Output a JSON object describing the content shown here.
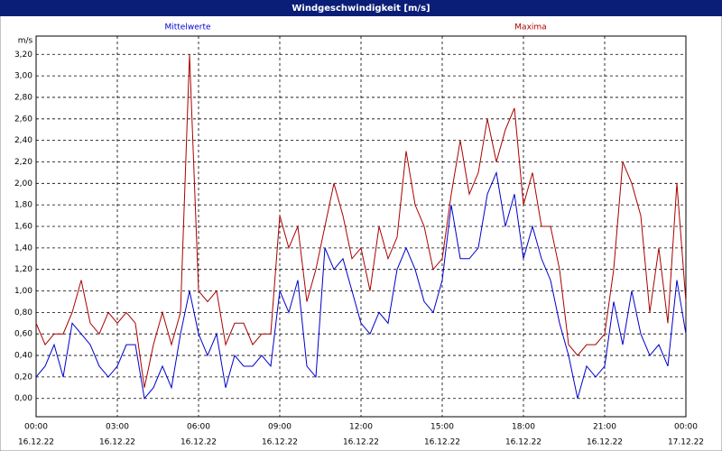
{
  "chart_data": {
    "type": "line",
    "title": "Windgeschwindigkeit [m/s]",
    "y_label": "m/s",
    "x": [
      0,
      20,
      40,
      60,
      80,
      100,
      120,
      140,
      160,
      180,
      200,
      220,
      240,
      260,
      280,
      300,
      320,
      340,
      360,
      380,
      400,
      420,
      440,
      460,
      480,
      500,
      520,
      540,
      560,
      580,
      600,
      620,
      640,
      660,
      680,
      700,
      720,
      740,
      760,
      780,
      800,
      820,
      840,
      860,
      880,
      900,
      920,
      940,
      960,
      980,
      1000,
      1020,
      1040,
      1060,
      1080,
      1100,
      1120,
      1140,
      1160,
      1180,
      1200,
      1220,
      1240,
      1260,
      1280,
      1300,
      1320,
      1340,
      1360,
      1380,
      1400,
      1420,
      1440
    ],
    "series": [
      {
        "name": "Mittelwerte",
        "color": "#0000cc",
        "values": [
          0.2,
          0.3,
          0.5,
          0.2,
          0.7,
          0.6,
          0.5,
          0.3,
          0.2,
          0.3,
          0.5,
          0.5,
          0.0,
          0.1,
          0.3,
          0.1,
          0.6,
          1.0,
          0.6,
          0.4,
          0.6,
          0.1,
          0.4,
          0.3,
          0.3,
          0.4,
          0.3,
          1.0,
          0.8,
          1.1,
          0.3,
          0.2,
          1.4,
          1.2,
          1.3,
          1.0,
          0.7,
          0.6,
          0.8,
          0.7,
          1.2,
          1.4,
          1.2,
          0.9,
          0.8,
          1.1,
          1.8,
          1.3,
          1.3,
          1.4,
          1.9,
          2.1,
          1.6,
          1.9,
          1.3,
          1.6,
          1.3,
          1.1,
          0.7,
          0.4,
          0.0,
          0.3,
          0.2,
          0.3,
          0.9,
          0.5,
          1.0,
          0.6,
          0.4,
          0.5,
          0.3,
          1.1,
          0.6
        ]
      },
      {
        "name": "Maxima",
        "color": "#aa0000",
        "values": [
          0.7,
          0.5,
          0.6,
          0.6,
          0.8,
          1.1,
          0.7,
          0.6,
          0.8,
          0.7,
          0.8,
          0.7,
          0.1,
          0.5,
          0.8,
          0.5,
          0.8,
          3.2,
          1.0,
          0.9,
          1.0,
          0.5,
          0.7,
          0.7,
          0.5,
          0.6,
          0.6,
          1.7,
          1.4,
          1.6,
          0.9,
          1.2,
          1.6,
          2.0,
          1.7,
          1.3,
          1.4,
          1.0,
          1.6,
          1.3,
          1.5,
          2.3,
          1.8,
          1.6,
          1.2,
          1.3,
          1.9,
          2.4,
          1.9,
          2.1,
          2.6,
          2.2,
          2.5,
          2.7,
          1.8,
          2.1,
          1.6,
          1.6,
          1.2,
          0.5,
          0.4,
          0.5,
          0.5,
          0.6,
          1.2,
          2.2,
          2.0,
          1.7,
          0.8,
          1.4,
          0.7,
          2.0,
          0.9
        ]
      }
    ],
    "xlim": [
      0,
      1440
    ],
    "xticks": [
      {
        "value": 0,
        "label": "00:00"
      },
      {
        "value": 180,
        "label": "03:00"
      },
      {
        "value": 360,
        "label": "06:00"
      },
      {
        "value": 540,
        "label": "09:00"
      },
      {
        "value": 720,
        "label": "12:00"
      },
      {
        "value": 900,
        "label": "15:00"
      },
      {
        "value": 1080,
        "label": "18:00"
      },
      {
        "value": 1260,
        "label": "21:00"
      },
      {
        "value": 1440,
        "label": "00:00"
      }
    ],
    "xtick_dates": [
      "16.12.22",
      "16.12.22",
      "16.12.22",
      "16.12.22",
      "16.12.22",
      "16.12.22",
      "16.12.22",
      "16.12.22",
      "17.12.22"
    ],
    "ylim": [
      -0.17,
      3.37
    ],
    "yticks": [
      {
        "value": 0,
        "label": "0,00"
      },
      {
        "value": 0.2,
        "label": "0,20"
      },
      {
        "value": 0.4,
        "label": "0,40"
      },
      {
        "value": 0.6,
        "label": "0,60"
      },
      {
        "value": 0.8,
        "label": "0,80"
      },
      {
        "value": 1.0,
        "label": "1,00"
      },
      {
        "value": 1.2,
        "label": "1,20"
      },
      {
        "value": 1.4,
        "label": "1,40"
      },
      {
        "value": 1.6,
        "label": "1,60"
      },
      {
        "value": 1.8,
        "label": "1,80"
      },
      {
        "value": 2.0,
        "label": "2,00"
      },
      {
        "value": 2.2,
        "label": "2,20"
      },
      {
        "value": 2.4,
        "label": "2,40"
      },
      {
        "value": 2.6,
        "label": "2,60"
      },
      {
        "value": 2.8,
        "label": "2,80"
      },
      {
        "value": 3.0,
        "label": "3,00"
      },
      {
        "value": 3.2,
        "label": "3,20"
      }
    ],
    "grid": true
  }
}
